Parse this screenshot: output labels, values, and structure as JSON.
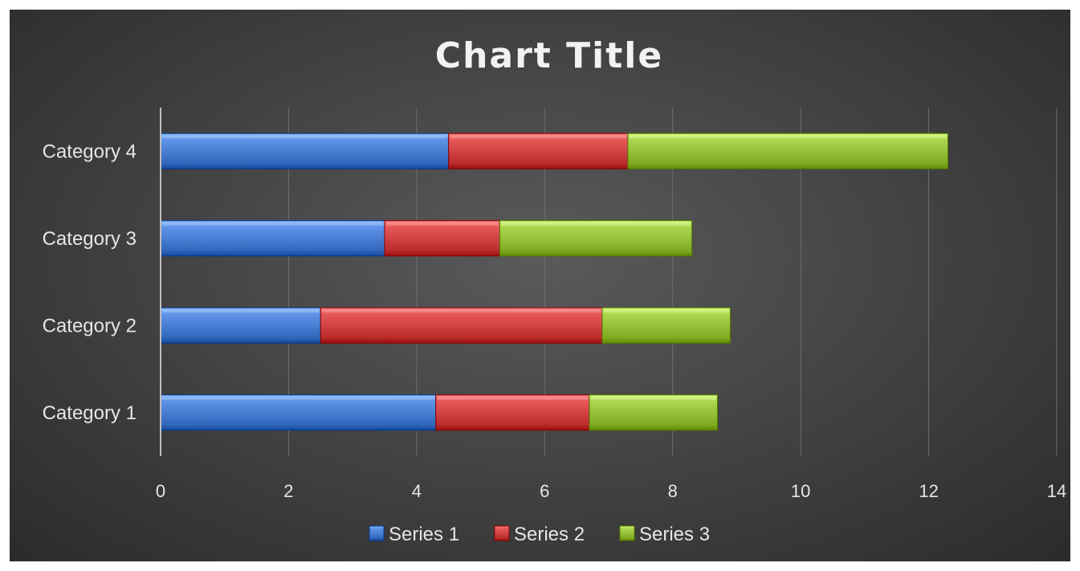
{
  "chart_data": {
    "type": "bar",
    "orientation": "horizontal",
    "stacked": true,
    "title": "Chart Title",
    "xlabel": "",
    "ylabel": "",
    "categories": [
      "Category 1",
      "Category 2",
      "Category 3",
      "Category 4"
    ],
    "series": [
      {
        "name": "Series 1",
        "values": [
          4.3,
          2.5,
          3.5,
          4.5
        ],
        "color": "#4a7fd4"
      },
      {
        "name": "Series 2",
        "values": [
          2.4,
          4.4,
          1.8,
          2.8
        ],
        "color": "#d24444"
      },
      {
        "name": "Series 3",
        "values": [
          2.0,
          2.0,
          3.0,
          5.0
        ],
        "color": "#98c23a"
      }
    ],
    "xlim": [
      0,
      14
    ],
    "x_ticks": [
      "0",
      "2",
      "4",
      "6",
      "8",
      "10",
      "12",
      "14"
    ],
    "grid": true,
    "legend": "bottom"
  }
}
